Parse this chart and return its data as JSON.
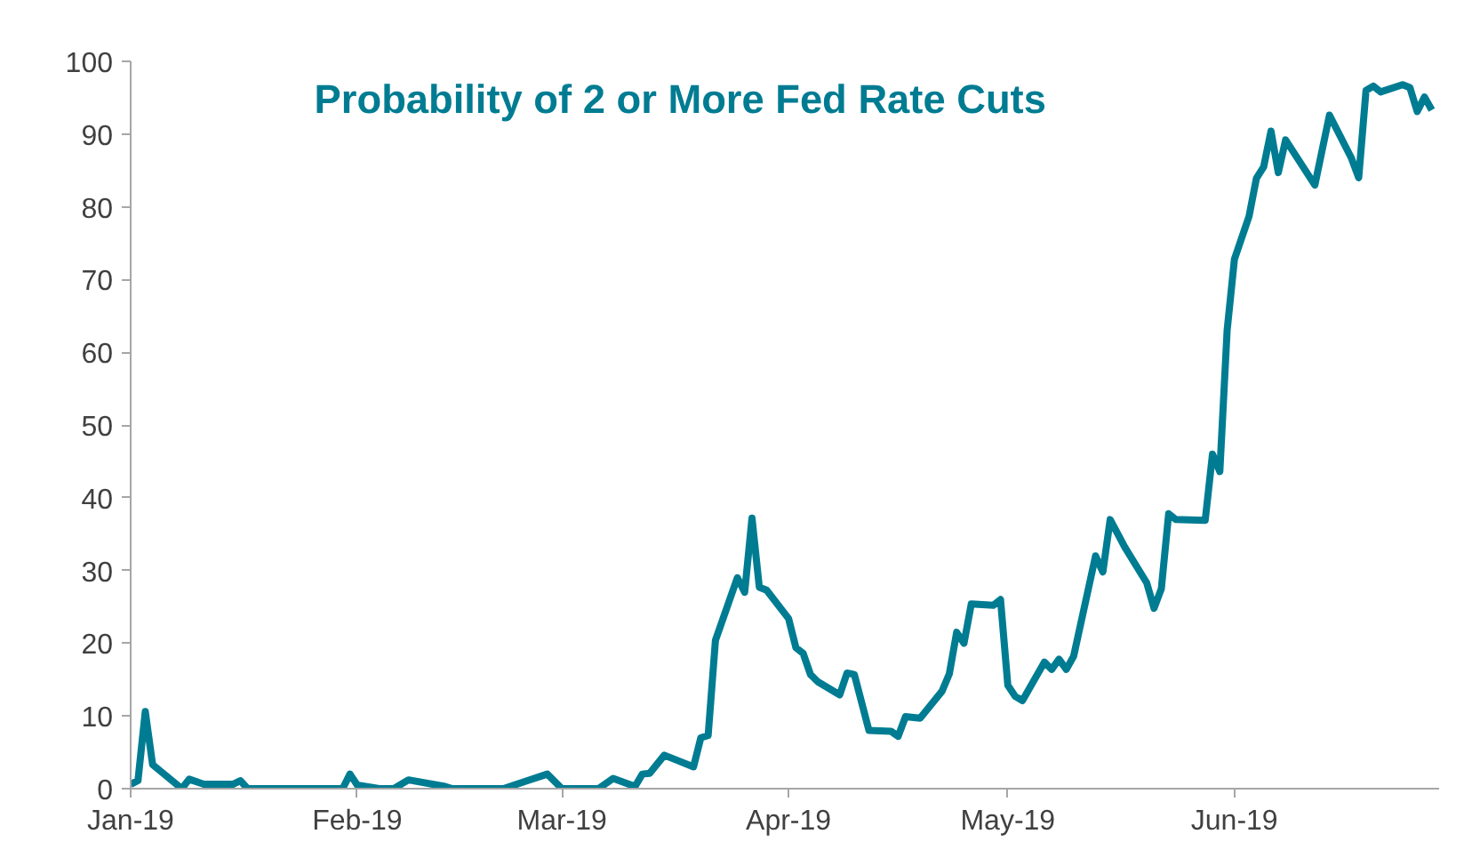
{
  "chart_data": {
    "type": "line",
    "title": "Probability of 2 or More Fed Rate Cuts",
    "x": [
      "2019-01-01",
      "2019-01-02",
      "2019-01-03",
      "2019-01-04",
      "2019-01-08",
      "2019-01-09",
      "2019-01-11",
      "2019-01-15",
      "2019-01-16",
      "2019-01-17",
      "2019-01-22",
      "2019-01-30",
      "2019-01-31",
      "2019-02-01",
      "2019-02-04",
      "2019-02-06",
      "2019-02-08",
      "2019-02-13",
      "2019-02-14",
      "2019-02-21",
      "2019-02-24",
      "2019-02-27",
      "2019-03-01",
      "2019-03-06",
      "2019-03-08",
      "2019-03-11",
      "2019-03-12",
      "2019-03-13",
      "2019-03-15",
      "2019-03-19",
      "2019-03-20",
      "2019-03-21",
      "2019-03-22",
      "2019-03-25",
      "2019-03-26",
      "2019-03-27",
      "2019-03-28",
      "2019-03-29",
      "2019-04-01",
      "2019-04-02",
      "2019-04-03",
      "2019-04-04",
      "2019-04-05",
      "2019-04-08",
      "2019-04-09",
      "2019-04-10",
      "2019-04-12",
      "2019-04-15",
      "2019-04-16",
      "2019-04-17",
      "2019-04-19",
      "2019-04-22",
      "2019-04-23",
      "2019-04-24",
      "2019-04-25",
      "2019-04-26",
      "2019-04-29",
      "2019-04-30",
      "2019-05-01",
      "2019-05-02",
      "2019-05-03",
      "2019-05-06",
      "2019-05-07",
      "2019-05-08",
      "2019-05-09",
      "2019-05-10",
      "2019-05-13",
      "2019-05-14",
      "2019-05-15",
      "2019-05-17",
      "2019-05-20",
      "2019-05-21",
      "2019-05-22",
      "2019-05-23",
      "2019-05-24",
      "2019-05-28",
      "2019-05-29",
      "2019-05-30",
      "2019-05-31",
      "2019-06-01",
      "2019-06-03",
      "2019-06-04",
      "2019-06-05",
      "2019-06-06",
      "2019-06-07",
      "2019-06-08",
      "2019-06-12",
      "2019-06-14",
      "2019-06-17",
      "2019-06-18",
      "2019-06-19",
      "2019-06-20",
      "2019-06-21",
      "2019-06-24",
      "2019-06-25",
      "2019-06-26",
      "2019-06-27",
      "2019-06-28"
    ],
    "series": [
      {
        "color": "#007c92",
        "values": [
          0.6,
          1.1,
          10.6,
          3.3,
          0,
          1.3,
          0.6,
          0.6,
          1.1,
          0,
          0,
          0,
          2,
          0.5,
          0,
          0,
          1.2,
          0.3,
          0,
          0,
          1,
          2,
          0,
          0,
          1.4,
          0.3,
          2,
          2.1,
          4.6,
          3,
          7,
          7.3,
          20.4,
          29,
          27,
          37.2,
          27.7,
          27.3,
          23.4,
          19.4,
          18.6,
          15.7,
          14.7,
          12.9,
          15.9,
          15.7,
          8,
          7.9,
          7.2,
          9.9,
          9.7,
          13.4,
          15.8,
          21.5,
          20,
          25.4,
          25.2,
          26,
          14.2,
          12.7,
          12.1,
          17.4,
          16.4,
          17.8,
          16.4,
          18.2,
          32,
          29.8,
          37,
          33.2,
          28.3,
          24.8,
          27.5,
          37.8,
          37,
          36.9,
          46,
          43.6,
          63,
          72.8,
          78.7,
          83.9,
          85.5,
          90.4,
          84.7,
          89.2,
          83,
          92.6,
          86.7,
          84,
          96,
          96.6,
          95.8,
          96.8,
          96.4,
          93.1,
          95.1,
          93.3
        ]
      }
    ],
    "xlim": [
      "2019-01-01",
      "2019-06-29"
    ],
    "xticks": [
      {
        "value": "2019-01-01",
        "label": "Jan-19"
      },
      {
        "value": "2019-02-01",
        "label": "Feb-19"
      },
      {
        "value": "2019-03-01",
        "label": "Mar-19"
      },
      {
        "value": "2019-04-01",
        "label": "Apr-19"
      },
      {
        "value": "2019-05-01",
        "label": "May-19"
      },
      {
        "value": "2019-06-01",
        "label": "Jun-19"
      }
    ],
    "ylim": [
      0,
      100
    ],
    "yticks": [
      0,
      10,
      20,
      30,
      40,
      50,
      60,
      70,
      80,
      90,
      100
    ],
    "grid": false
  }
}
